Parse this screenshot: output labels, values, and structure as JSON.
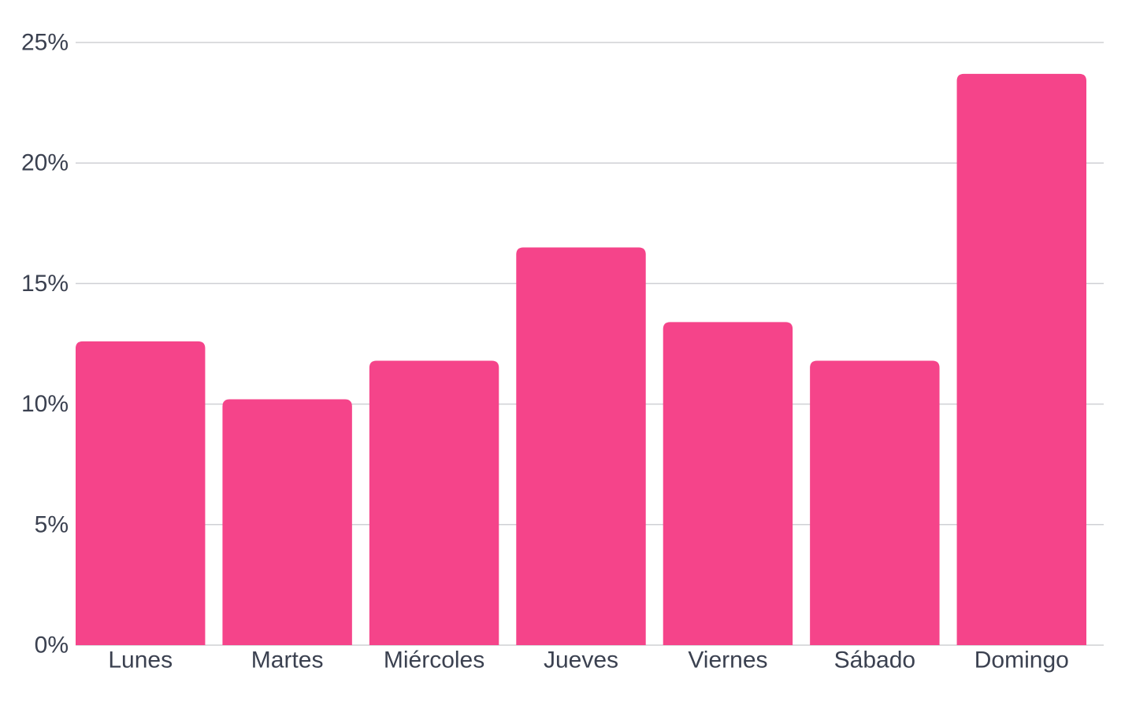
{
  "chart_data": {
    "type": "bar",
    "title": "",
    "xlabel": "",
    "ylabel": "",
    "categories": [
      "Lunes",
      "Martes",
      "Miércoles",
      "Jueves",
      "Viernes",
      "Sábado",
      "Domingo"
    ],
    "values": [
      12.6,
      10.2,
      11.8,
      16.5,
      13.4,
      11.8,
      23.7
    ],
    "ylim": [
      0,
      25
    ],
    "yticks": [
      0,
      5,
      10,
      15,
      20,
      25
    ],
    "ytick_labels": [
      "0%",
      "5%",
      "10%",
      "15%",
      "20%",
      "25%"
    ],
    "grid": true,
    "legend": "none"
  },
  "colors": {
    "bar": "#f5448a",
    "grid": "#cfd0d4",
    "text": "#3b4150"
  }
}
